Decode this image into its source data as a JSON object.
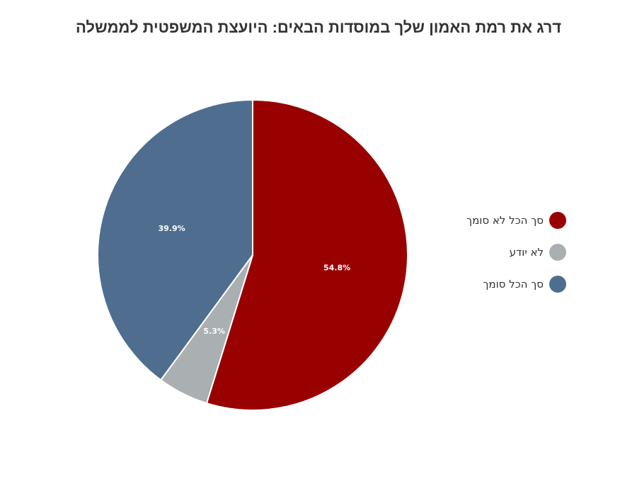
{
  "chart_data": {
    "type": "pie",
    "title": "דרג את רמת האמון שלך במוסדות הבאים: היועצת המשפטית לממשלה",
    "slices": [
      {
        "label": "סך הכל לא סומך",
        "value": 54.8,
        "display": "54.8%",
        "color": "#990000"
      },
      {
        "label": "לא יודע",
        "value": 5.3,
        "display": "5.3%",
        "color": "#aab0b1"
      },
      {
        "label": "סך הכל סומך",
        "value": 39.9,
        "display": "39.9%",
        "color": "#4f6e8f"
      }
    ],
    "start_angle_deg": 0,
    "direction": "clockwise",
    "legend_position": "right"
  }
}
